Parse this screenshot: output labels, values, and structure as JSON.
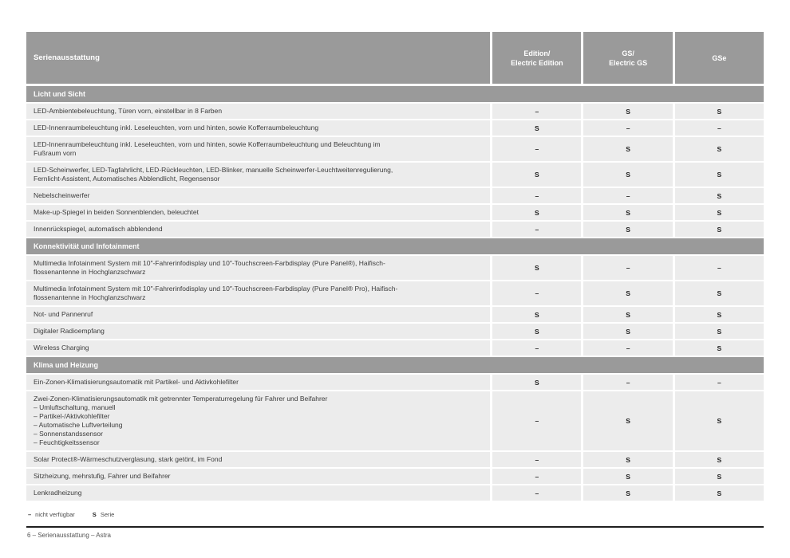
{
  "colors": {
    "header_bg": "#9a9a9a",
    "section_bg": "#9a9a9a",
    "row_bg": "#ececec",
    "separator": "#ffffff",
    "body_text": "#3c3c3c",
    "value_text": "#1e1e1e",
    "footer_rule": "#1f1f1f"
  },
  "table": {
    "feature_header": "Serienausstattung",
    "columns": [
      "Edition/\nElectric Edition",
      "GS/\nElectric GS",
      "GSe"
    ],
    "sections": [
      {
        "title": "Licht und Sicht",
        "rows": [
          {
            "feature": "LED-Ambientebeleuchtung, Türen vorn, einstellbar in 8 Farben",
            "values": [
              "–",
              "S",
              "S"
            ]
          },
          {
            "feature": "LED-Innenraumbeleuchtung inkl. Leseleuchten, vorn und hinten, sowie Kofferraumbeleuchtung",
            "values": [
              "S",
              "–",
              "–"
            ]
          },
          {
            "feature": "LED-Innenraumbeleuchtung inkl. Leseleuchten, vorn und hinten, sowie Kofferraumbeleuchtung und Beleuchtung im\nFußraum vorn",
            "values": [
              "–",
              "S",
              "S"
            ]
          },
          {
            "feature": "LED-Scheinwerfer, LED-Tagfahrlicht, LED-Rückleuchten, LED-Blinker, manuelle Scheinwerfer-Leuchtweitenregulierung,\nFernlicht-Assistent, Automatisches Abblendlicht, Regensensor",
            "values": [
              "S",
              "S",
              "S"
            ]
          },
          {
            "feature": "Nebelscheinwerfer",
            "values": [
              "–",
              "–",
              "S"
            ]
          },
          {
            "feature": "Make-up-Spiegel in beiden Sonnenblenden, beleuchtet",
            "values": [
              "S",
              "S",
              "S"
            ]
          },
          {
            "feature": "Innenrückspiegel, automatisch abblendend",
            "values": [
              "–",
              "S",
              "S"
            ]
          }
        ]
      },
      {
        "title": "Konnektivität und Infotainment",
        "rows": [
          {
            "feature": "Multimedia Infotainment System mit 10″-Fahrerinfodisplay und 10″-Touchscreen-Farbdisplay (Pure Panel®), Haifisch-\nflossenantenne in Hochglanzschwarz",
            "values": [
              "S",
              "–",
              "–"
            ]
          },
          {
            "feature": "Multimedia Infotainment System mit 10″-Fahrerinfodisplay und 10″-Touchscreen-Farbdisplay (Pure Panel® Pro), Haifisch-\nflossenantenne in Hochglanzschwarz",
            "values": [
              "–",
              "S",
              "S"
            ]
          },
          {
            "feature": "Not- und Pannenruf",
            "values": [
              "S",
              "S",
              "S"
            ]
          },
          {
            "feature": "Digitaler Radioempfang",
            "values": [
              "S",
              "S",
              "S"
            ]
          },
          {
            "feature": "Wireless Charging",
            "values": [
              "–",
              "–",
              "S"
            ]
          }
        ]
      },
      {
        "title": "Klima und Heizung",
        "rows": [
          {
            "feature": "Ein-Zonen-Klimatisierungsautomatik mit Partikel- und Aktivkohlefilter",
            "values": [
              "S",
              "–",
              "–"
            ]
          },
          {
            "feature": "Zwei-Zonen-Klimatisierungsautomatik mit getrennter Temperaturregelung für Fahrer und Beifahrer\n–  Umluftschaltung, manuell\n–  Partikel-/Aktivkohlefilter\n–  Automatische Luftverteilung\n–  Sonnenstandssensor\n–  Feuchtigkeitssensor",
            "values": [
              "–",
              "S",
              "S"
            ]
          },
          {
            "feature": "Solar Protect®-Wärmeschutzverglasung, stark getönt, im Fond",
            "values": [
              "–",
              "S",
              "S"
            ]
          },
          {
            "feature": "Sitzheizung, mehrstufig, Fahrer und Beifahrer",
            "values": [
              "–",
              "S",
              "S"
            ]
          },
          {
            "feature": "Lenkradheizung",
            "values": [
              "–",
              "S",
              "S"
            ]
          }
        ]
      }
    ]
  },
  "legend": {
    "dash_symbol": "–",
    "dash_label": "nicht verfügbar",
    "s_symbol": "S",
    "s_label": "Serie"
  },
  "footer": {
    "page_line": "6 – Serienausstattung – Astra"
  }
}
